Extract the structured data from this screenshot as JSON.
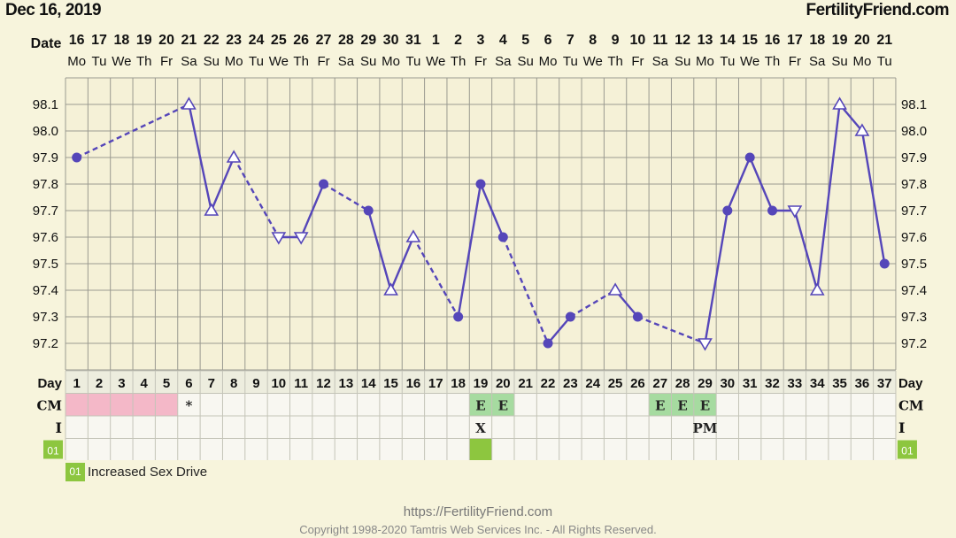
{
  "header": {
    "date": "Dec 16, 2019",
    "brand": "FertilityFriend.com"
  },
  "chart_data": {
    "type": "line",
    "xlabel": "Date",
    "ylim": [
      97.2,
      98.1
    ],
    "y_ticks": [
      "98.1",
      "98.0",
      "97.9",
      "97.8",
      "97.7",
      "97.6",
      "97.5",
      "97.4",
      "97.3",
      "97.2"
    ],
    "dates": [
      "16",
      "17",
      "18",
      "19",
      "20",
      "21",
      "22",
      "23",
      "24",
      "25",
      "26",
      "27",
      "28",
      "29",
      "30",
      "31",
      "1",
      "2",
      "3",
      "4",
      "5",
      "6",
      "7",
      "8",
      "9",
      "10",
      "11",
      "12",
      "13",
      "14",
      "15",
      "16",
      "17",
      "18",
      "19",
      "20",
      "21"
    ],
    "weekdays": [
      "Mo",
      "Tu",
      "We",
      "Th",
      "Fr",
      "Sa",
      "Su",
      "Mo",
      "Tu",
      "We",
      "Th",
      "Fr",
      "Sa",
      "Su",
      "Mo",
      "Tu",
      "We",
      "Th",
      "Fr",
      "Sa",
      "Su",
      "Mo",
      "Tu",
      "We",
      "Th",
      "Fr",
      "Sa",
      "Su",
      "Mo",
      "Tu",
      "We",
      "Th",
      "Fr",
      "Sa",
      "Su",
      "Mo",
      "Tu"
    ],
    "days": [
      "1",
      "2",
      "3",
      "4",
      "5",
      "6",
      "7",
      "8",
      "9",
      "10",
      "11",
      "12",
      "13",
      "14",
      "15",
      "16",
      "17",
      "18",
      "19",
      "20",
      "21",
      "22",
      "23",
      "24",
      "25",
      "26",
      "27",
      "28",
      "29",
      "30",
      "31",
      "32",
      "33",
      "34",
      "35",
      "36",
      "37"
    ],
    "temperatures": [
      {
        "day": 1,
        "value": 97.9,
        "marker": "dot"
      },
      {
        "day": 6,
        "value": 98.1,
        "marker": "triangle-up"
      },
      {
        "day": 7,
        "value": 97.7,
        "marker": "triangle-up"
      },
      {
        "day": 8,
        "value": 97.9,
        "marker": "triangle-up"
      },
      {
        "day": 10,
        "value": 97.6,
        "marker": "triangle-down"
      },
      {
        "day": 11,
        "value": 97.6,
        "marker": "triangle-down"
      },
      {
        "day": 12,
        "value": 97.8,
        "marker": "dot"
      },
      {
        "day": 14,
        "value": 97.7,
        "marker": "dot"
      },
      {
        "day": 15,
        "value": 97.4,
        "marker": "triangle-up"
      },
      {
        "day": 16,
        "value": 97.6,
        "marker": "triangle-up"
      },
      {
        "day": 18,
        "value": 97.3,
        "marker": "dot"
      },
      {
        "day": 19,
        "value": 97.8,
        "marker": "dot"
      },
      {
        "day": 20,
        "value": 97.6,
        "marker": "dot"
      },
      {
        "day": 22,
        "value": 97.2,
        "marker": "dot"
      },
      {
        "day": 23,
        "value": 97.3,
        "marker": "dot"
      },
      {
        "day": 25,
        "value": 97.4,
        "marker": "triangle-up"
      },
      {
        "day": 26,
        "value": 97.3,
        "marker": "dot"
      },
      {
        "day": 29,
        "value": 97.2,
        "marker": "triangle-down"
      },
      {
        "day": 30,
        "value": 97.7,
        "marker": "dot"
      },
      {
        "day": 31,
        "value": 97.9,
        "marker": "dot"
      },
      {
        "day": 32,
        "value": 97.7,
        "marker": "dot"
      },
      {
        "day": 33,
        "value": 97.7,
        "marker": "triangle-down"
      },
      {
        "day": 34,
        "value": 97.4,
        "marker": "triangle-up"
      },
      {
        "day": 35,
        "value": 98.1,
        "marker": "triangle-up"
      },
      {
        "day": 36,
        "value": 98.0,
        "marker": "triangle-up"
      },
      {
        "day": 37,
        "value": 97.5,
        "marker": "dot"
      }
    ],
    "dashed_segments": [
      [
        1,
        6
      ],
      [
        8,
        10
      ],
      [
        12,
        14
      ],
      [
        16,
        18
      ],
      [
        20,
        22
      ],
      [
        23,
        25
      ],
      [
        26,
        29
      ]
    ],
    "rows": [
      {
        "label": "Day",
        "key": "day"
      },
      {
        "label": "CM",
        "cells": {
          "6": "*",
          "19": "E",
          "20": "E",
          "27": "E",
          "28": "E",
          "29": "E"
        }
      },
      {
        "label": "I",
        "cells": {
          "19": "X",
          "29": "PM"
        }
      },
      {
        "label": "01",
        "cells": {}
      }
    ],
    "period_days": [
      1,
      2,
      3,
      4,
      5
    ],
    "cm_highlight_days": [
      19,
      20,
      27,
      28,
      29
    ],
    "code_row_highlight_days": [
      19
    ],
    "legend": {
      "code": "01",
      "label": "Increased Sex Drive"
    },
    "colors": {
      "line": "#5546b9",
      "grid": "#9a9a90",
      "period": "#f4b8c8",
      "cm_green": "#a6dba0",
      "code_green": "#8dc63f",
      "plot_bg": "#f5f1d7",
      "table_bg": "#f8f7f1"
    }
  },
  "footer": {
    "url": "https://FertilityFriend.com",
    "copyright": "Copyright 1998-2020 Tamtris Web Services Inc. - All Rights Reserved."
  }
}
